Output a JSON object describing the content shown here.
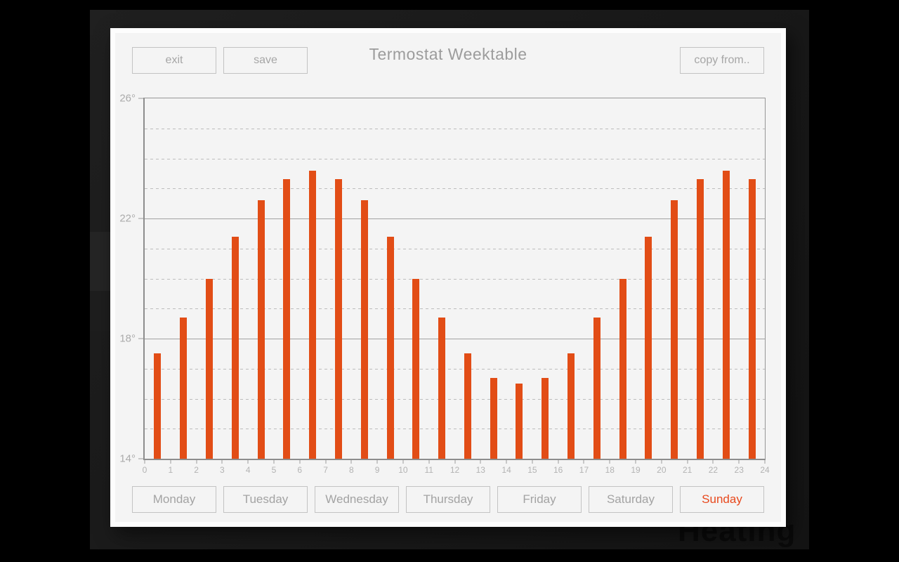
{
  "window": {
    "title": "Termostat Weektable",
    "background_watermark": "Heating"
  },
  "toolbar": {
    "exit_label": "exit",
    "save_label": "save",
    "copy_from_label": "copy from.."
  },
  "chart_data": {
    "type": "bar",
    "title": "Termostat Weektable",
    "x_hours": [
      0,
      1,
      2,
      3,
      4,
      5,
      6,
      7,
      8,
      9,
      10,
      11,
      12,
      13,
      14,
      15,
      16,
      17,
      18,
      19,
      20,
      21,
      22,
      23
    ],
    "values": [
      17.5,
      18.7,
      20.0,
      21.4,
      22.6,
      23.3,
      23.6,
      23.3,
      22.6,
      21.4,
      20.0,
      18.7,
      17.5,
      16.7,
      16.5,
      16.7,
      17.5,
      18.7,
      20.0,
      21.4,
      22.6,
      23.3,
      23.6,
      23.3
    ],
    "ylim": [
      14,
      26
    ],
    "xlim": [
      0,
      24
    ],
    "xtick_labels": [
      "0",
      "1",
      "2",
      "3",
      "4",
      "5",
      "6",
      "7",
      "8",
      "9",
      "10",
      "11",
      "12",
      "13",
      "14",
      "15",
      "16",
      "17",
      "18",
      "19",
      "20",
      "21",
      "22",
      "23",
      "24"
    ],
    "ytick_labels": [
      {
        "value": 26,
        "label": "26°"
      },
      {
        "value": 22,
        "label": "22°"
      },
      {
        "value": 18,
        "label": "18°"
      },
      {
        "value": 14,
        "label": "14°"
      }
    ],
    "gridlines": {
      "solid": [
        22,
        18
      ],
      "dashed": [
        25,
        24,
        23,
        21,
        20,
        19,
        17,
        16,
        15
      ]
    },
    "grid": true,
    "legend": false,
    "bar_color": "#e24d16"
  },
  "days": {
    "items": [
      {
        "label": "Monday",
        "active": false
      },
      {
        "label": "Tuesday",
        "active": false
      },
      {
        "label": "Wednesday",
        "active": false
      },
      {
        "label": "Thursday",
        "active": false
      },
      {
        "label": "Friday",
        "active": false
      },
      {
        "label": "Saturday",
        "active": false
      },
      {
        "label": "Sunday",
        "active": true
      }
    ],
    "active_color": "#e8491d"
  },
  "colors": {
    "bar": "#e24d16",
    "active_day": "#e8491d",
    "panel_background": "#f4f4f4"
  }
}
